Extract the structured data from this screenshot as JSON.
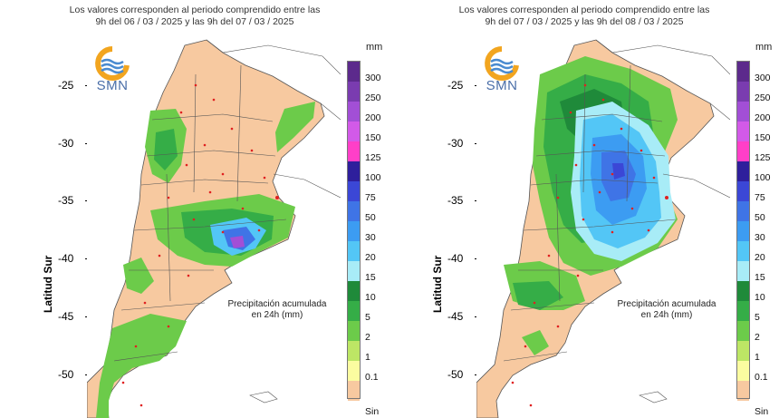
{
  "panels": [
    {
      "title_line1": "Los valores corresponden al periodo comprendido entre las",
      "title_line2": "9h del 06 / 03 / 2025  y las 9h del 07 / 03 / 2025",
      "logo_text": "SMN",
      "y_axis_label": "Latitud Sur",
      "y_ticks": [
        "-25",
        "-30",
        "-35",
        "-40",
        "-45",
        "-50"
      ],
      "note_line1": "Precipitación acumulada",
      "note_line2": "en 24h (mm)"
    },
    {
      "title_line1": "Los valores corresponden al periodo comprendido entre las",
      "title_line2": "9h del 07 / 03 / 2025  y las 9h del 08 / 03 / 2025",
      "logo_text": "SMN",
      "y_axis_label": "Latitud Sur",
      "y_ticks": [
        "-25",
        "-30",
        "-35",
        "-40",
        "-45",
        "-50"
      ],
      "note_line1": "Precipitación acumulada",
      "note_line2": "en 24h (mm)"
    }
  ],
  "legend": {
    "unit": "mm",
    "bottom_label": "Sin",
    "levels": [
      {
        "label": "300",
        "color": "#5c2a8c"
      },
      {
        "label": "250",
        "color": "#7a3cb0"
      },
      {
        "label": "200",
        "color": "#a24fd6"
      },
      {
        "label": "150",
        "color": "#d25ae8"
      },
      {
        "label": "125",
        "color": "#ff3fc8"
      },
      {
        "label": "100",
        "color": "#2e1f9c"
      },
      {
        "label": "75",
        "color": "#3b47d6"
      },
      {
        "label": "50",
        "color": "#3f74e6"
      },
      {
        "label": "30",
        "color": "#3c9cf2"
      },
      {
        "label": "20",
        "color": "#53c6f6"
      },
      {
        "label": "15",
        "color": "#a8ecf7"
      },
      {
        "label": "10",
        "color": "#1f8a3a"
      },
      {
        "label": "5",
        "color": "#35ad47"
      },
      {
        "label": "2",
        "color": "#6ccb4a"
      },
      {
        "label": "1",
        "color": "#bde665"
      },
      {
        "label": "0.1",
        "color": "#fbfca0"
      },
      {
        "label": "",
        "color": "#f7c9a0"
      }
    ]
  },
  "colors": {
    "land": "#f7c9a0",
    "ocean": "#ffffff",
    "border": "#555555",
    "station": "#e02020"
  }
}
